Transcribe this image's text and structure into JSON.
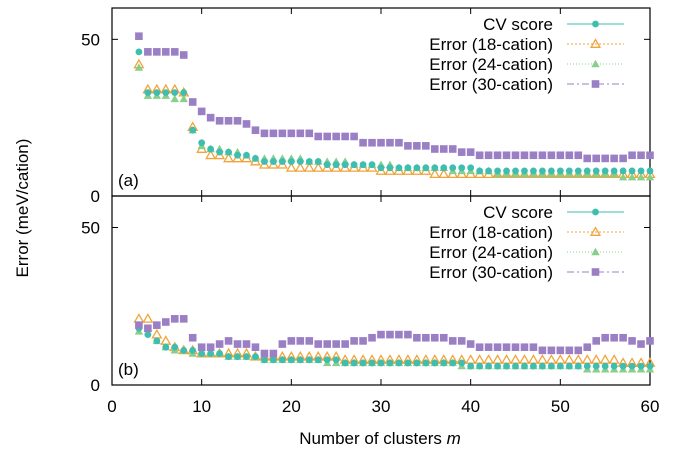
{
  "chart_data": {
    "type": "scatter",
    "xlabel": "Number of clusters",
    "xlabel_var": "m",
    "ylabel": "Error (meV/cation)",
    "xlim": [
      0,
      60
    ],
    "ylim": [
      0,
      60
    ],
    "xticks": [
      "0",
      "10",
      "20",
      "30",
      "40",
      "50",
      "60"
    ],
    "yticks": [
      "0",
      "50"
    ],
    "legend_position": "top-right",
    "legend": [
      "CV score",
      "Error (18-cation)",
      "Error (24-cation)",
      "Error (30-cation)"
    ],
    "colors": {
      "cv": "#3fbdae",
      "e18": "#f2a33a",
      "e24": "#89cf8c",
      "e30": "#9b7fc4"
    },
    "x": [
      3,
      4,
      5,
      6,
      7,
      8,
      9,
      10,
      11,
      12,
      13,
      14,
      15,
      16,
      17,
      18,
      19,
      20,
      21,
      22,
      23,
      24,
      25,
      26,
      27,
      28,
      29,
      30,
      31,
      32,
      33,
      34,
      35,
      36,
      37,
      38,
      39,
      40,
      41,
      42,
      43,
      44,
      45,
      46,
      47,
      48,
      49,
      50,
      51,
      52,
      53,
      54,
      55,
      56,
      57,
      58,
      59,
      60
    ],
    "panels": [
      {
        "label": "(a)",
        "series": [
          {
            "key": "cv",
            "name": "CV score",
            "marker": "circle",
            "values": [
              46,
              33,
              33,
              33,
              33,
              33,
              21,
              17,
              15,
              14,
              14,
              13,
              13,
              12,
              11,
              11,
              11,
              11,
              11,
              11,
              11,
              10,
              10,
              10,
              10,
              10,
              10,
              9,
              9,
              9,
              9,
              9,
              9,
              9,
              9,
              9,
              9,
              9,
              8,
              8,
              8,
              8,
              8,
              8,
              8,
              8,
              8,
              8,
              8,
              8,
              8,
              8,
              8,
              8,
              8,
              8,
              8,
              8
            ]
          },
          {
            "key": "e18",
            "name": "Error (18-cation)",
            "marker": "triangle-open",
            "values": [
              42,
              34,
              34,
              34,
              34,
              33,
              22,
              15,
              13,
              13,
              12,
              12,
              12,
              11,
              10,
              10,
              10,
              9,
              9,
              9,
              9,
              9,
              9,
              9,
              9,
              9,
              9,
              8,
              8,
              8,
              8,
              8,
              8,
              7,
              7,
              7,
              7,
              7,
              7,
              7,
              7,
              7,
              7,
              7,
              7,
              7,
              7,
              7,
              7,
              7,
              7,
              7,
              7,
              7,
              7,
              7,
              7,
              7
            ]
          },
          {
            "key": "e24",
            "name": "Error (24-cation)",
            "marker": "triangle",
            "values": [
              41,
              32,
              32,
              32,
              31,
              31,
              21,
              16,
              15,
              15,
              14,
              14,
              13,
              12,
              12,
              12,
              12,
              12,
              12,
              11,
              11,
              11,
              11,
              11,
              10,
              10,
              10,
              10,
              10,
              9,
              9,
              9,
              9,
              9,
              9,
              8,
              8,
              8,
              8,
              8,
              7,
              7,
              7,
              7,
              7,
              7,
              7,
              7,
              7,
              7,
              7,
              7,
              7,
              7,
              6,
              6,
              6,
              6
            ]
          },
          {
            "key": "e30",
            "name": "Error (30-cation)",
            "marker": "square",
            "values": [
              51,
              46,
              46,
              46,
              46,
              45,
              30,
              27,
              25,
              24,
              24,
              24,
              23,
              21,
              20,
              20,
              20,
              20,
              20,
              20,
              19,
              19,
              19,
              19,
              19,
              17,
              17,
              17,
              17,
              17,
              16,
              16,
              16,
              15,
              15,
              15,
              14,
              14,
              13,
              13,
              13,
              13,
              13,
              13,
              13,
              13,
              13,
              13,
              13,
              13,
              12,
              12,
              12,
              12,
              12,
              13,
              13,
              13
            ]
          }
        ]
      },
      {
        "label": "(b)",
        "series": [
          {
            "key": "cv",
            "name": "CV score",
            "marker": "circle",
            "values": [
              18,
              16,
              14,
              12,
              12,
              11,
              11,
              10,
              10,
              10,
              9,
              9,
              9,
              9,
              8,
              8,
              8,
              8,
              8,
              8,
              8,
              8,
              8,
              7,
              7,
              7,
              7,
              7,
              7,
              7,
              7,
              7,
              7,
              7,
              7,
              7,
              7,
              6,
              6,
              6,
              6,
              6,
              6,
              6,
              6,
              6,
              6,
              6,
              6,
              6,
              6,
              6,
              6,
              6,
              6,
              6,
              6,
              6
            ]
          },
          {
            "key": "e18",
            "name": "Error (18-cation)",
            "marker": "triangle-open",
            "values": [
              21,
              21,
              16,
              14,
              12,
              11,
              11,
              10,
              10,
              10,
              10,
              10,
              10,
              9,
              9,
              9,
              9,
              9,
              9,
              9,
              9,
              9,
              9,
              8,
              8,
              8,
              8,
              8,
              8,
              8,
              8,
              8,
              8,
              8,
              8,
              8,
              8,
              8,
              8,
              8,
              8,
              8,
              8,
              8,
              8,
              8,
              8,
              8,
              8,
              8,
              8,
              8,
              8,
              8,
              7,
              7,
              7,
              7
            ]
          },
          {
            "key": "e24",
            "name": "Error (24-cation)",
            "marker": "triangle",
            "values": [
              17,
              18,
              14,
              12,
              11,
              11,
              10,
              10,
              10,
              10,
              9,
              9,
              9,
              9,
              8,
              8,
              8,
              8,
              8,
              8,
              8,
              7,
              7,
              7,
              7,
              7,
              7,
              7,
              7,
              7,
              7,
              7,
              7,
              7,
              7,
              7,
              6,
              6,
              6,
              6,
              6,
              6,
              6,
              6,
              6,
              6,
              6,
              6,
              6,
              6,
              5,
              5,
              5,
              5,
              5,
              5,
              5,
              5
            ]
          },
          {
            "key": "e30",
            "name": "Error (30-cation)",
            "marker": "square",
            "values": [
              19,
              18,
              19,
              20,
              21,
              21,
              15,
              12,
              12,
              13,
              14,
              13,
              13,
              12,
              10,
              10,
              13,
              14,
              14,
              14,
              13,
              13,
              13,
              13,
              14,
              14,
              15,
              16,
              16,
              16,
              16,
              15,
              15,
              15,
              15,
              14,
              14,
              13,
              12,
              12,
              12,
              12,
              12,
              12,
              12,
              11,
              11,
              11,
              11,
              11,
              12,
              14,
              15,
              15,
              15,
              14,
              13,
              14
            ]
          }
        ]
      }
    ]
  }
}
